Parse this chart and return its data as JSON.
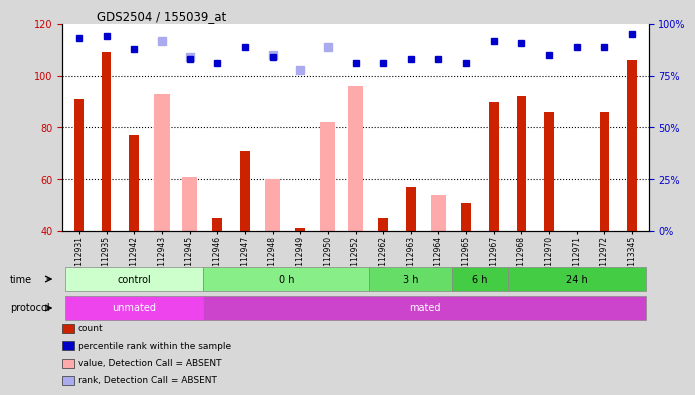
{
  "title": "GDS2504 / 155039_at",
  "samples": [
    "GSM112931",
    "GSM112935",
    "GSM112942",
    "GSM112943",
    "GSM112945",
    "GSM112946",
    "GSM112947",
    "GSM112948",
    "GSM112949",
    "GSM112950",
    "GSM112952",
    "GSM112962",
    "GSM112963",
    "GSM112964",
    "GSM112965",
    "GSM112967",
    "GSM112968",
    "GSM112970",
    "GSM112971",
    "GSM112972",
    "GSM113345"
  ],
  "red_values": [
    91,
    109,
    77,
    null,
    null,
    45,
    71,
    null,
    41,
    null,
    null,
    45,
    57,
    null,
    51,
    90,
    92,
    86,
    null,
    86,
    106
  ],
  "pink_values": [
    null,
    null,
    null,
    93,
    61,
    null,
    null,
    60,
    null,
    82,
    96,
    null,
    null,
    54,
    null,
    null,
    null,
    null,
    null,
    null,
    null
  ],
  "blue_pct": [
    93,
    94,
    88,
    null,
    83,
    81,
    89,
    84,
    null,
    null,
    81,
    81,
    83,
    83,
    81,
    92,
    91,
    85,
    89,
    89,
    95
  ],
  "light_blue_pct": [
    null,
    null,
    null,
    92,
    84,
    null,
    null,
    85,
    78,
    89,
    null,
    null,
    null,
    null,
    null,
    null,
    null,
    null,
    null,
    null,
    null
  ],
  "ylim_left": [
    40,
    120
  ],
  "ylim_right": [
    0,
    100
  ],
  "yticks_left": [
    40,
    60,
    80,
    100,
    120
  ],
  "yticks_right": [
    0,
    25,
    50,
    75,
    100
  ],
  "ytick_labels_right": [
    "0%",
    "25%",
    "50%",
    "75%",
    "100%"
  ],
  "groups_time": [
    {
      "label": "control",
      "start": 0,
      "end": 5,
      "color": "#ccffcc"
    },
    {
      "label": "0 h",
      "start": 5,
      "end": 11,
      "color": "#88ee88"
    },
    {
      "label": "3 h",
      "start": 11,
      "end": 14,
      "color": "#66dd66"
    },
    {
      "label": "6 h",
      "start": 14,
      "end": 16,
      "color": "#44cc44"
    },
    {
      "label": "24 h",
      "start": 16,
      "end": 21,
      "color": "#44cc44"
    }
  ],
  "groups_protocol": [
    {
      "label": "unmated",
      "start": 0,
      "end": 5,
      "color": "#ee44ee"
    },
    {
      "label": "mated",
      "start": 5,
      "end": 21,
      "color": "#cc44cc"
    }
  ],
  "legend_items": [
    {
      "color": "#cc2200",
      "label": "count"
    },
    {
      "color": "#0000cc",
      "label": "percentile rank within the sample"
    },
    {
      "color": "#ffaaaa",
      "label": "value, Detection Call = ABSENT"
    },
    {
      "color": "#aaaaee",
      "label": "rank, Detection Call = ABSENT"
    }
  ],
  "red_color": "#cc2200",
  "pink_color": "#ffaaaa",
  "blue_color": "#0000cc",
  "light_blue_color": "#aaaaee",
  "background_color": "#d8d8d8",
  "plot_bg_color": "#ffffff",
  "tick_label_color_left": "#cc0000",
  "tick_label_color_right": "#0000cc"
}
